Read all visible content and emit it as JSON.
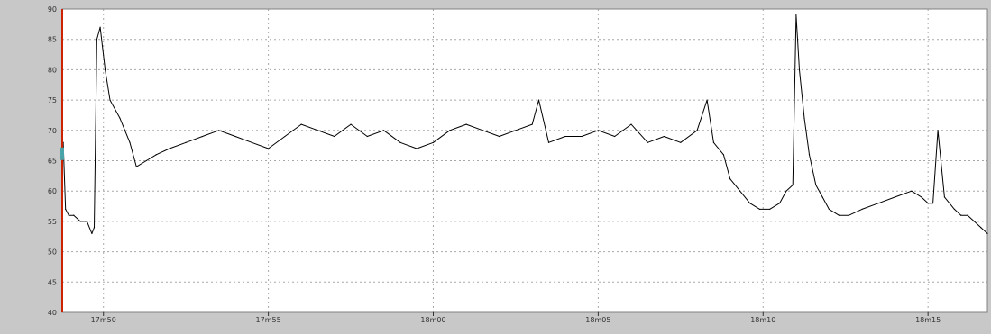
{
  "colors": {
    "panel_background": "#c8c8c8",
    "plot_background": "#ffffff",
    "grid": "#a8a8a8",
    "trace": "#000000",
    "cursor": "#cc2200",
    "cursor_marker": "#4aa3a8",
    "axis_text": "#333333"
  },
  "chart_data": {
    "type": "line",
    "title": "",
    "xlabel": "",
    "ylabel": "",
    "grid": true,
    "ylim": [
      40,
      90
    ],
    "y_ticks": [
      "40",
      "45",
      "50",
      "55",
      "60",
      "65",
      "70",
      "75",
      "80",
      "85",
      "90"
    ],
    "x_unit": "minutes",
    "xlim": [
      1068.75,
      1096.8
    ],
    "x_ticks": [
      {
        "value": 1070,
        "label": "17m50"
      },
      {
        "value": 1075,
        "label": "17m55"
      },
      {
        "value": 1080,
        "label": "18m00"
      },
      {
        "value": 1085,
        "label": "18m05"
      },
      {
        "value": 1090,
        "label": "18m10"
      },
      {
        "value": 1095,
        "label": "18m15"
      }
    ],
    "cursor_at": 1068.75,
    "series": [
      {
        "name": "",
        "x": [
          1068.75,
          1068.78,
          1068.85,
          1068.95,
          1069.1,
          1069.3,
          1069.5,
          1069.65,
          1069.72,
          1069.8,
          1069.9,
          1070.05,
          1070.2,
          1070.5,
          1070.8,
          1071.0,
          1071.3,
          1071.6,
          1072.0,
          1072.5,
          1073.0,
          1073.5,
          1074.0,
          1074.5,
          1075.0,
          1075.5,
          1076.0,
          1076.5,
          1077.0,
          1077.5,
          1078.0,
          1078.5,
          1079.0,
          1079.5,
          1080.0,
          1080.5,
          1081.0,
          1081.5,
          1082.0,
          1082.5,
          1083.0,
          1083.2,
          1083.5,
          1084.0,
          1084.5,
          1085.0,
          1085.5,
          1086.0,
          1086.5,
          1087.0,
          1087.5,
          1088.0,
          1088.3,
          1088.5,
          1088.8,
          1089.0,
          1089.3,
          1089.6,
          1089.9,
          1090.2,
          1090.5,
          1090.7,
          1090.9,
          1091.0,
          1091.1,
          1091.25,
          1091.4,
          1091.6,
          1091.8,
          1092.0,
          1092.3,
          1092.6,
          1093.0,
          1093.5,
          1094.0,
          1094.5,
          1094.8,
          1095.0,
          1095.15,
          1095.3,
          1095.5,
          1095.8,
          1096.0,
          1096.2,
          1096.4,
          1096.6,
          1096.8
        ],
        "values": [
          66,
          68,
          57,
          56,
          56,
          55,
          55,
          53,
          54,
          85,
          87,
          80,
          75,
          72,
          68,
          64,
          65,
          66,
          67,
          68,
          69,
          70,
          69,
          68,
          67,
          69,
          71,
          70,
          69,
          71,
          69,
          70,
          68,
          67,
          68,
          70,
          71,
          70,
          69,
          70,
          71,
          75,
          68,
          69,
          69,
          70,
          69,
          71,
          68,
          69,
          68,
          70,
          75,
          68,
          66,
          62,
          60,
          58,
          57,
          57,
          58,
          60,
          61,
          89,
          80,
          72,
          66,
          61,
          59,
          57,
          56,
          56,
          57,
          58,
          59,
          60,
          59,
          58,
          58,
          70,
          59,
          57,
          56,
          56,
          55,
          54,
          53
        ]
      }
    ]
  }
}
